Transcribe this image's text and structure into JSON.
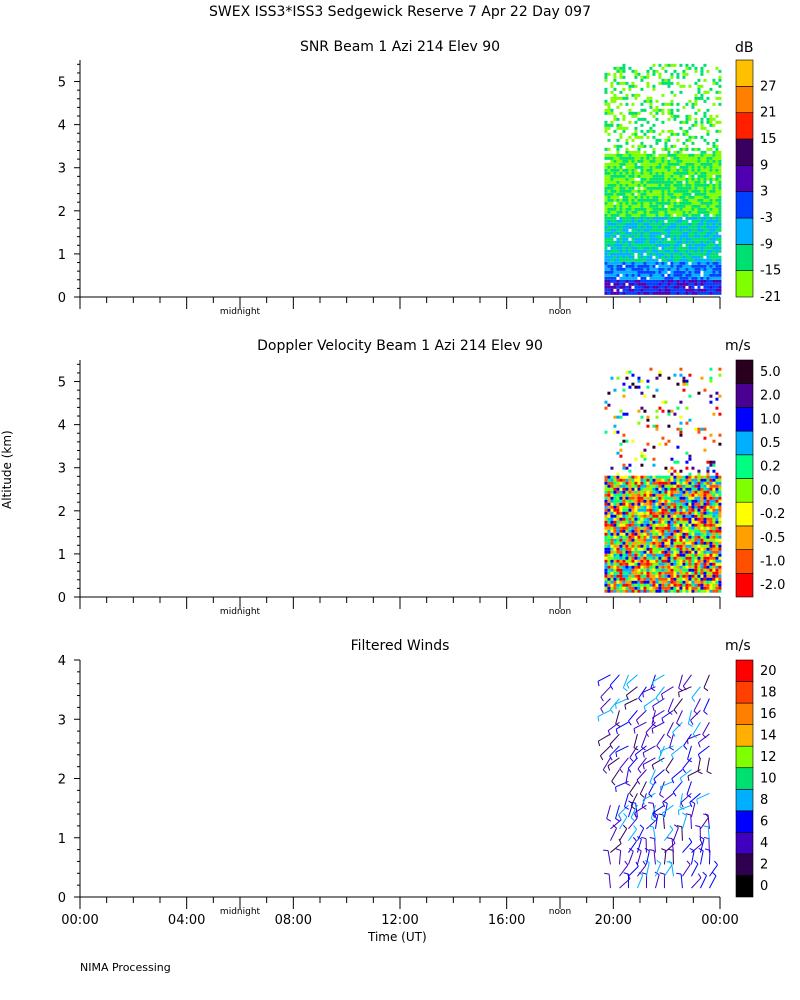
{
  "header": {
    "title": "SWEX ISS3*ISS3 Sedgewick Reserve   7 Apr 22 Day 097"
  },
  "footer": {
    "processing": "NIMA Processing"
  },
  "colors": {
    "snr_scale": [
      "#80ff00",
      "#00e070",
      "#00b0ff",
      "#0040ff",
      "#5000b0",
      "#3a0060",
      "#ff2000",
      "#ff8000",
      "#ffc000"
    ],
    "vel_scale": [
      "#ff0000",
      "#ff5000",
      "#ffa000",
      "#ffff00",
      "#80ff00",
      "#00ff80",
      "#00b0ff",
      "#0000ff",
      "#4a0090",
      "#2a0020"
    ],
    "wind_scale": [
      "#000000",
      "#300050",
      "#4000c0",
      "#0000ff",
      "#00b0ff",
      "#00e070",
      "#80ff00",
      "#ffb000",
      "#ff8000",
      "#ff4000",
      "#ff0000"
    ]
  },
  "chart_data": [
    {
      "type": "heatmap",
      "title": "SNR Beam 1 Azi 214 Elev 90",
      "xlabel": "",
      "ylabel": "",
      "ylim": [
        0,
        5.5
      ],
      "y_ticks": [
        "0",
        "1",
        "2",
        "3",
        "4",
        "5"
      ],
      "x_marks": [
        "midnight",
        "noon"
      ],
      "data_time_range": [
        "19:40",
        "00:00"
      ],
      "colorbar": {
        "unit": "dB",
        "labels": [
          "27",
          "21",
          "15",
          "9",
          "3",
          "-3",
          "-9",
          "-15",
          "-21"
        ]
      }
    },
    {
      "type": "heatmap",
      "title": "Doppler Velocity Beam 1 Azi 214 Elev 90",
      "xlabel": "",
      "ylabel": "Altitude (km)",
      "ylim": [
        0,
        5.5
      ],
      "y_ticks": [
        "0",
        "1",
        "2",
        "3",
        "4",
        "5"
      ],
      "x_marks": [
        "midnight",
        "noon"
      ],
      "data_time_range": [
        "19:40",
        "00:00"
      ],
      "colorbar": {
        "unit": "m/s",
        "labels": [
          "5.0",
          "2.0",
          "1.0",
          "0.5",
          "0.2",
          "0.0",
          "-0.2",
          "-0.5",
          "-1.0",
          "-2.0"
        ]
      }
    },
    {
      "type": "scatter",
      "title": "Filtered Winds",
      "xlabel": "Time (UT)",
      "ylabel": "",
      "ylim": [
        0,
        4
      ],
      "y_ticks": [
        "0",
        "1",
        "2",
        "3",
        "4"
      ],
      "x_ticks": [
        "00:00",
        "04:00",
        "08:00",
        "12:00",
        "16:00",
        "20:00",
        "00:00"
      ],
      "x_marks": [
        "midnight",
        "noon"
      ],
      "data_time_range": [
        "19:40",
        "00:00"
      ],
      "colorbar": {
        "unit": "m/s",
        "labels": [
          "20",
          "18",
          "16",
          "14",
          "12",
          "10",
          "8",
          "6",
          "4",
          "2",
          "0"
        ]
      }
    }
  ]
}
